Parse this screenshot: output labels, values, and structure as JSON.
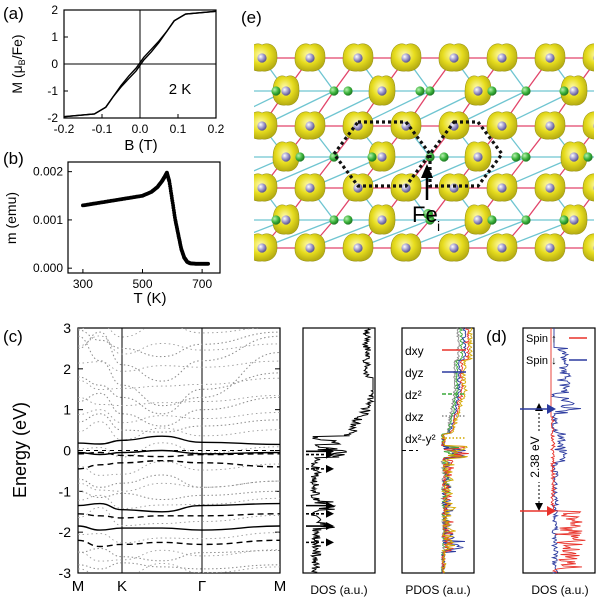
{
  "panels": {
    "a": {
      "label": "(a)",
      "annotation": "2 K",
      "chart_data": {
        "type": "line",
        "xlabel": "B (T)",
        "ylabel": "M (μB/Fe)",
        "xlim": [
          -0.2,
          0.2
        ],
        "ylim": [
          -2,
          2
        ],
        "xticks": [
          "-0.2",
          "-0.1",
          "0.0",
          "0.1",
          "0.2"
        ],
        "yticks": [
          "-2",
          "-1",
          "0",
          "1",
          "2"
        ],
        "series": [
          {
            "x": [
              -0.2,
              -0.12,
              -0.09,
              -0.07,
              -0.05,
              -0.03,
              -0.01,
              0.0,
              0.01,
              0.03,
              0.05,
              0.07,
              0.09,
              0.12,
              0.2
            ],
            "y": [
              -1.95,
              -1.85,
              -1.6,
              -1.2,
              -0.85,
              -0.55,
              -0.25,
              -0.05,
              0.15,
              0.45,
              0.8,
              1.2,
              1.6,
              1.85,
              1.95
            ]
          },
          {
            "x": [
              -0.2,
              -0.12,
              -0.09,
              -0.07,
              -0.05,
              -0.03,
              -0.01,
              0.0,
              0.01,
              0.03,
              0.05,
              0.07,
              0.09,
              0.12,
              0.2
            ],
            "y": [
              -1.95,
              -1.85,
              -1.6,
              -1.2,
              -0.8,
              -0.45,
              -0.15,
              0.05,
              0.25,
              0.55,
              0.85,
              1.2,
              1.6,
              1.85,
              1.95
            ]
          }
        ]
      }
    },
    "b": {
      "label": "(b)",
      "chart_data": {
        "type": "scatter",
        "xlabel": "T (K)",
        "ylabel": "m (emu)",
        "xlim": [
          250,
          760
        ],
        "ylim": [
          -0.0001,
          0.0022
        ],
        "xticks": [
          "300",
          "500",
          "700"
        ],
        "yticks": [
          "0.000",
          "0.001",
          "0.002"
        ],
        "x": [
          300,
          340,
          380,
          420,
          460,
          500,
          530,
          550,
          565,
          575,
          582,
          590,
          600,
          610,
          620,
          630,
          640,
          650,
          660,
          680,
          700,
          720
        ],
        "y": [
          0.0013,
          0.00134,
          0.00138,
          0.00142,
          0.00146,
          0.0015,
          0.00158,
          0.00168,
          0.0018,
          0.0019,
          0.00198,
          0.0018,
          0.0014,
          0.001,
          0.0007,
          0.0004,
          0.00022,
          0.00013,
          0.0001,
          9e-05,
          9e-05,
          9e-05
        ]
      }
    },
    "c": {
      "label": "(c)",
      "ylabel": "Energy (eV)",
      "yticks": [
        "3",
        "2",
        "1",
        "0",
        "-1",
        "-2",
        "-3"
      ],
      "kpoints": [
        "M",
        "K",
        "Γ",
        "M"
      ],
      "ylim": [
        -3,
        3
      ],
      "dos_xlabel": "DOS (a.u.)",
      "chart_data": {
        "type": "line",
        "bands_solid": [
          [
            0.18,
            0.16,
            0.25,
            0.35,
            0.2,
            0.15
          ],
          [
            -0.05,
            -0.1,
            -0.05,
            0.0,
            -0.08,
            -0.05
          ],
          [
            -1.35,
            -1.3,
            -1.45,
            -1.5,
            -1.35,
            -1.3
          ],
          [
            -1.85,
            -1.95,
            -1.9,
            -1.9,
            -1.95,
            -1.85
          ]
        ],
        "bands_dashed": [
          [
            -0.08,
            -0.05,
            -0.12,
            -0.15,
            -0.1,
            -0.08
          ],
          [
            -0.45,
            -0.35,
            -0.3,
            -0.25,
            -0.3,
            -0.4
          ],
          [
            -1.55,
            -1.6,
            -1.65,
            -1.6,
            -1.6,
            -1.55
          ],
          [
            -2.2,
            -2.35,
            -2.3,
            -2.25,
            -2.3,
            -2.2
          ]
        ],
        "band_dotted": [
          [
            2.8,
            2.2,
            1.6,
            1.1,
            1.3,
            2.4
          ],
          [
            2.5,
            2.9,
            2.1,
            1.7,
            2.2,
            2.8
          ],
          [
            1.8,
            1.6,
            1.3,
            0.9,
            1.5,
            1.9
          ],
          [
            1.2,
            1.4,
            0.9,
            0.6,
            1.0,
            1.3
          ],
          [
            0.7,
            0.9,
            0.5,
            0.45,
            0.6,
            0.75
          ],
          [
            -0.7,
            -0.9,
            -0.8,
            -0.6,
            -0.9,
            -0.75
          ],
          [
            -1.0,
            -1.15,
            -1.05,
            -1.2,
            -1.1,
            -1.0
          ],
          [
            -2.5,
            -2.4,
            -2.6,
            -2.7,
            -2.5,
            -2.45
          ],
          [
            -2.8,
            -2.9,
            -2.75,
            -2.85,
            -2.9,
            -2.8
          ],
          [
            2.95,
            2.7,
            2.5,
            2.3,
            2.6,
            2.9
          ]
        ],
        "dos_arrows_solid": [
          -0.02,
          -1.35,
          -1.85
        ],
        "dos_arrows_dashed": [
          -0.1,
          -0.45,
          -1.55,
          -2.25
        ]
      }
    },
    "pdos": {
      "xlabel": "PDOS (a.u.)",
      "legend": [
        {
          "name": "dxy",
          "color": "#e8322a",
          "style": "solid"
        },
        {
          "name": "dyz",
          "color": "#2b3a9f",
          "style": "solid"
        },
        {
          "name": "dz²",
          "color": "#3aa83a",
          "style": "dashed"
        },
        {
          "name": "dxz",
          "color": "#888888",
          "style": "dotted"
        },
        {
          "name": "dx²-y²",
          "color": "#d4a900",
          "style": "dotted"
        }
      ]
    },
    "d": {
      "label": "(d)",
      "xlabel": "DOS (a.u.)",
      "legend": [
        {
          "name": "Spin ↑",
          "color": "#e8322a"
        },
        {
          "name": "Spin ↓",
          "color": "#2b3a9f"
        }
      ],
      "gap_label": "2.38 eV",
      "arrow_colors": {
        "up": "#2b3a9f",
        "down": "#e8322a"
      }
    },
    "e": {
      "label": "(e)",
      "defect_label": "Fe",
      "defect_sub": "i",
      "colors": {
        "iso": "#e6dc1e",
        "iso_edge": "#8f8a10",
        "fe_atom": "#9a94c8",
        "ge_atom": "#3cb43c",
        "bond_red": "#e2456a",
        "bond_cyan": "#6fc5d1"
      }
    }
  }
}
